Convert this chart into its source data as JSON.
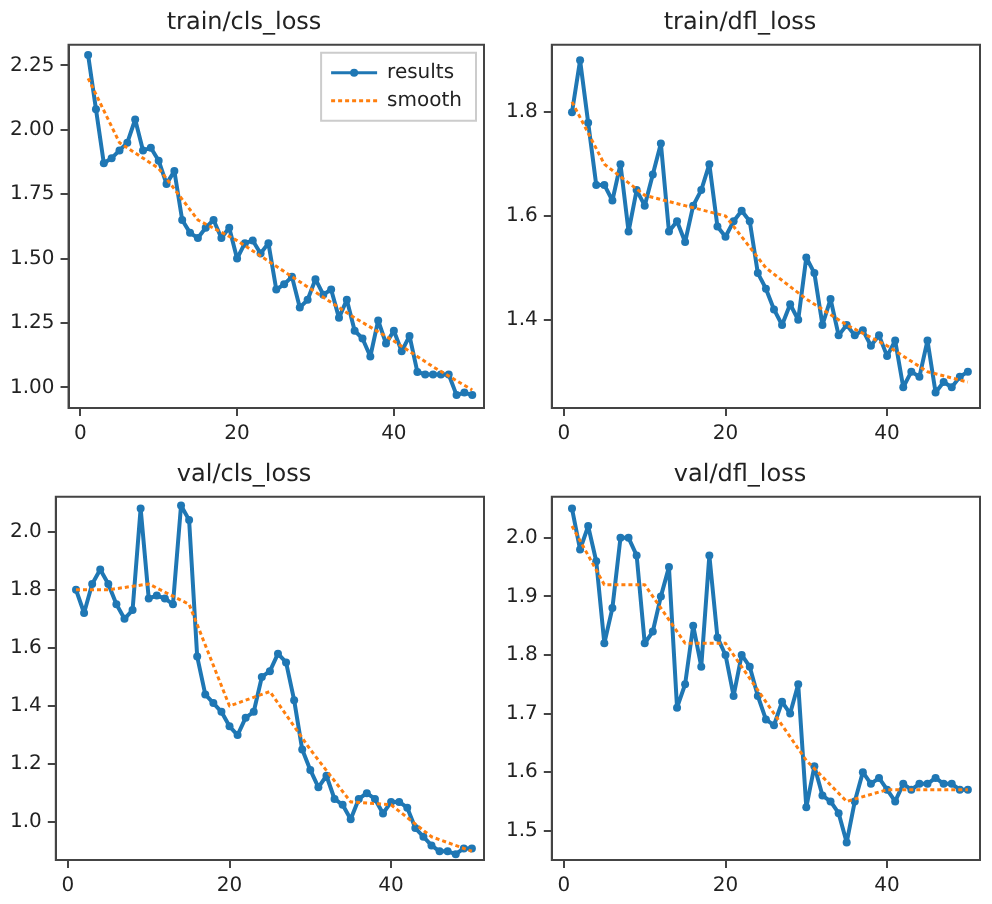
{
  "chart_data": [
    {
      "type": "line",
      "title": "train/cls_loss",
      "xlim": [
        -1.5,
        51.5
      ],
      "xticks": [
        0,
        20,
        40
      ],
      "ylim": [
        0.92,
        2.33
      ],
      "yticks": [
        {
          "value": 1,
          "label": "1.00"
        },
        {
          "value": 1.25,
          "label": "1.25"
        },
        {
          "value": 1.5,
          "label": "1.50"
        },
        {
          "value": 1.75,
          "label": "1.75"
        },
        {
          "value": 2,
          "label": "2.00"
        },
        {
          "value": 2.25,
          "label": "2.25"
        }
      ],
      "grid": false,
      "legend": "top right",
      "x": [
        1,
        2,
        3,
        4,
        5,
        6,
        7,
        8,
        9,
        10,
        11,
        12,
        13,
        14,
        15,
        16,
        17,
        18,
        19,
        20,
        21,
        22,
        23,
        24,
        25,
        26,
        27,
        28,
        29,
        30,
        31,
        32,
        33,
        34,
        35,
        36,
        37,
        38,
        39,
        40,
        41,
        42,
        43,
        44,
        45,
        46,
        47,
        48,
        49,
        50
      ],
      "series": [
        {
          "name": "results",
          "color": "#1f77b4",
          "marker": "circle",
          "line_style": "solid",
          "values": [
            2.29,
            2.08,
            1.87,
            1.89,
            1.92,
            1.95,
            2.04,
            1.92,
            1.93,
            1.88,
            1.79,
            1.84,
            1.65,
            1.6,
            1.58,
            1.62,
            1.65,
            1.58,
            1.62,
            1.5,
            1.56,
            1.57,
            1.52,
            1.56,
            1.38,
            1.4,
            1.43,
            1.31,
            1.34,
            1.42,
            1.36,
            1.38,
            1.27,
            1.34,
            1.22,
            1.19,
            1.12,
            1.26,
            1.17,
            1.22,
            1.14,
            1.2,
            1.06,
            1.05,
            1.05,
            1.05,
            1.05,
            0.97,
            0.98,
            0.97
          ]
        },
        {
          "name": "smooth",
          "color": "#ff7f0e",
          "marker": "none",
          "line_style": "dotted",
          "x": [
            1,
            5,
            10,
            15,
            20,
            25,
            30,
            35,
            40,
            45,
            50
          ],
          "values": [
            2.2,
            1.95,
            1.85,
            1.65,
            1.57,
            1.47,
            1.37,
            1.27,
            1.18,
            1.08,
            0.99
          ]
        }
      ]
    },
    {
      "type": "line",
      "title": "train/dfl_loss",
      "xlim": [
        -1.5,
        51.5
      ],
      "xticks": [
        0,
        20,
        40
      ],
      "ylim": [
        1.23,
        1.93
      ],
      "yticks": [
        {
          "value": 1.4,
          "label": "1.4"
        },
        {
          "value": 1.6,
          "label": "1.6"
        },
        {
          "value": 1.8,
          "label": "1.8"
        }
      ],
      "grid": false,
      "legend": false,
      "x": [
        1,
        2,
        3,
        4,
        5,
        6,
        7,
        8,
        9,
        10,
        11,
        12,
        13,
        14,
        15,
        16,
        17,
        18,
        19,
        20,
        21,
        22,
        23,
        24,
        25,
        26,
        27,
        28,
        29,
        30,
        31,
        32,
        33,
        34,
        35,
        36,
        37,
        38,
        39,
        40,
        41,
        42,
        43,
        44,
        45,
        46,
        47,
        48,
        49,
        50
      ],
      "series": [
        {
          "color": "#1f77b4",
          "marker": "circle",
          "line_style": "solid",
          "values": [
            1.8,
            1.9,
            1.78,
            1.66,
            1.66,
            1.63,
            1.7,
            1.57,
            1.65,
            1.62,
            1.68,
            1.74,
            1.57,
            1.59,
            1.55,
            1.62,
            1.65,
            1.7,
            1.58,
            1.56,
            1.59,
            1.61,
            1.59,
            1.49,
            1.46,
            1.42,
            1.39,
            1.43,
            1.4,
            1.52,
            1.49,
            1.39,
            1.44,
            1.37,
            1.39,
            1.37,
            1.38,
            1.35,
            1.37,
            1.33,
            1.36,
            1.27,
            1.3,
            1.29,
            1.36,
            1.26,
            1.28,
            1.27,
            1.29,
            1.3
          ]
        },
        {
          "color": "#ff7f0e",
          "marker": "none",
          "line_style": "dotted",
          "x": [
            1,
            5,
            10,
            15,
            20,
            25,
            30,
            35,
            40,
            45,
            50
          ],
          "values": [
            1.82,
            1.7,
            1.64,
            1.62,
            1.6,
            1.5,
            1.44,
            1.39,
            1.35,
            1.3,
            1.28
          ]
        }
      ]
    },
    {
      "type": "line",
      "title": "val/cls_loss",
      "xlim": [
        -1.5,
        51.5
      ],
      "xticks": [
        0,
        20,
        40
      ],
      "ylim": [
        0.87,
        2.12
      ],
      "yticks": [
        {
          "value": 1,
          "label": "1.0"
        },
        {
          "value": 1.2,
          "label": "1.2"
        },
        {
          "value": 1.4,
          "label": "1.4"
        },
        {
          "value": 1.6,
          "label": "1.6"
        },
        {
          "value": 1.8,
          "label": "1.8"
        },
        {
          "value": 2,
          "label": "2.0"
        }
      ],
      "grid": false,
      "legend": false,
      "x": [
        1,
        2,
        3,
        4,
        5,
        6,
        7,
        8,
        9,
        10,
        11,
        12,
        13,
        14,
        15,
        16,
        17,
        18,
        19,
        20,
        21,
        22,
        23,
        24,
        25,
        26,
        27,
        28,
        29,
        30,
        31,
        32,
        33,
        34,
        35,
        36,
        37,
        38,
        39,
        40,
        41,
        42,
        43,
        44,
        45,
        46,
        47,
        48,
        49,
        50
      ],
      "series": [
        {
          "color": "#1f77b4",
          "marker": "circle",
          "line_style": "solid",
          "values": [
            1.8,
            1.72,
            1.82,
            1.87,
            1.82,
            1.75,
            1.7,
            1.73,
            2.08,
            1.77,
            1.78,
            1.77,
            1.75,
            2.09,
            2.04,
            1.57,
            1.44,
            1.41,
            1.38,
            1.33,
            1.3,
            1.36,
            1.38,
            1.5,
            1.52,
            1.58,
            1.55,
            1.42,
            1.25,
            1.18,
            1.12,
            1.16,
            1.08,
            1.06,
            1.01,
            1.08,
            1.1,
            1.08,
            1.03,
            1.07,
            1.07,
            1.05,
            0.98,
            0.95,
            0.92,
            0.9,
            0.9,
            0.89,
            0.91,
            0.91
          ]
        },
        {
          "color": "#ff7f0e",
          "marker": "none",
          "line_style": "dotted",
          "x": [
            1,
            5,
            10,
            15,
            20,
            25,
            30,
            35,
            40,
            45,
            50
          ],
          "values": [
            1.8,
            1.8,
            1.82,
            1.75,
            1.4,
            1.45,
            1.25,
            1.07,
            1.06,
            0.95,
            0.9
          ]
        }
      ]
    },
    {
      "type": "line",
      "title": "val/dfl_loss",
      "xlim": [
        -1.5,
        51.5
      ],
      "xticks": [
        0,
        20,
        40
      ],
      "ylim": [
        1.45,
        2.07
      ],
      "yticks": [
        {
          "value": 1.5,
          "label": "1.5"
        },
        {
          "value": 1.6,
          "label": "1.6"
        },
        {
          "value": 1.7,
          "label": "1.7"
        },
        {
          "value": 1.8,
          "label": "1.8"
        },
        {
          "value": 1.9,
          "label": "1.9"
        },
        {
          "value": 2,
          "label": "2.0"
        }
      ],
      "grid": false,
      "legend": false,
      "x": [
        1,
        2,
        3,
        4,
        5,
        6,
        7,
        8,
        9,
        10,
        11,
        12,
        13,
        14,
        15,
        16,
        17,
        18,
        19,
        20,
        21,
        22,
        23,
        24,
        25,
        26,
        27,
        28,
        29,
        30,
        31,
        32,
        33,
        34,
        35,
        36,
        37,
        38,
        39,
        40,
        41,
        42,
        43,
        44,
        45,
        46,
        47,
        48,
        49,
        50
      ],
      "series": [
        {
          "color": "#1f77b4",
          "marker": "circle",
          "line_style": "solid",
          "values": [
            2.05,
            1.98,
            2.02,
            1.96,
            1.82,
            1.88,
            2,
            2,
            1.97,
            1.82,
            1.84,
            1.9,
            1.95,
            1.71,
            1.75,
            1.85,
            1.78,
            1.97,
            1.83,
            1.8,
            1.73,
            1.8,
            1.78,
            1.73,
            1.69,
            1.68,
            1.72,
            1.7,
            1.75,
            1.54,
            1.61,
            1.56,
            1.55,
            1.53,
            1.48,
            1.55,
            1.6,
            1.58,
            1.59,
            1.57,
            1.55,
            1.58,
            1.57,
            1.58,
            1.58,
            1.59,
            1.58,
            1.58,
            1.57,
            1.57
          ]
        },
        {
          "color": "#ff7f0e",
          "marker": "none",
          "line_style": "dotted",
          "x": [
            1,
            5,
            10,
            15,
            20,
            25,
            30,
            35,
            40,
            45,
            50
          ],
          "values": [
            2.02,
            1.92,
            1.92,
            1.82,
            1.82,
            1.72,
            1.62,
            1.55,
            1.57,
            1.57,
            1.57
          ]
        }
      ]
    }
  ]
}
